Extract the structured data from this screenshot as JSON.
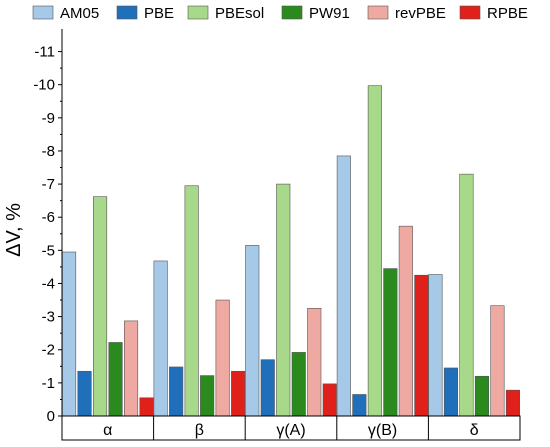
{
  "chart_data": {
    "type": "bar",
    "ylabel": "ΔV, %",
    "categories": [
      "α",
      "β",
      "γ(A)",
      "γ(B)",
      "δ"
    ],
    "y_ticks": [
      "0",
      "-1",
      "-2",
      "-3",
      "-4",
      "-5",
      "-6",
      "-7",
      "-8",
      "-9",
      "-10",
      "-11"
    ],
    "ylim": [
      0,
      -11.5
    ],
    "legend_position": "top",
    "series": [
      {
        "name": "AM05",
        "color": "#a7c9e8",
        "values": [
          -4.95,
          -4.68,
          -5.15,
          -7.85,
          -4.27
        ]
      },
      {
        "name": "PBE",
        "color": "#1f6fba",
        "values": [
          -1.35,
          -1.48,
          -1.7,
          -0.65,
          -1.45
        ]
      },
      {
        "name": "PBEsol",
        "color": "#a8d98b",
        "values": [
          -6.62,
          -6.95,
          -7.0,
          -9.97,
          -7.3
        ]
      },
      {
        "name": "PW91",
        "color": "#2a8a1e",
        "values": [
          -2.22,
          -1.22,
          -1.92,
          -4.45,
          -1.2
        ]
      },
      {
        "name": "revPBE",
        "color": "#eeaaa2",
        "values": [
          -2.87,
          -3.5,
          -3.25,
          -5.73,
          -3.33
        ]
      },
      {
        "name": "RPBE",
        "color": "#e0201b",
        "values": [
          -0.55,
          -1.35,
          -0.97,
          -4.25,
          -0.78
        ]
      }
    ]
  }
}
